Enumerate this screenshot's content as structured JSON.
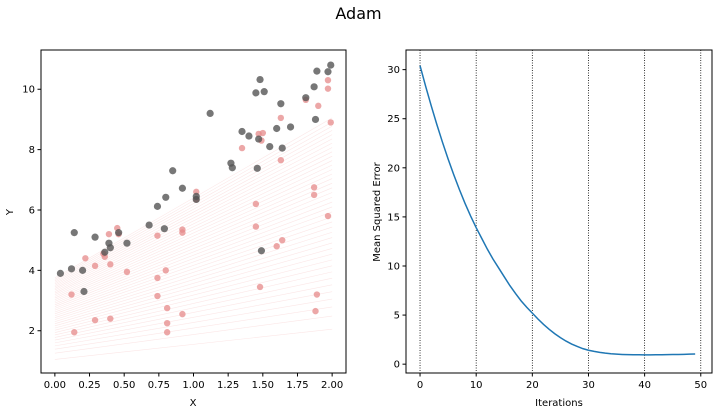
{
  "figure": {
    "title": "Adam"
  },
  "chart_data": [
    {
      "type": "scatter",
      "title": "",
      "xlabel": "X",
      "ylabel": "Y",
      "xlim": [
        -0.1,
        2.1
      ],
      "ylim": [
        0.6,
        11.3
      ],
      "xticks": [
        "0.00",
        "0.25",
        "0.50",
        "0.75",
        "1.00",
        "1.25",
        "1.50",
        "1.75",
        "2.00"
      ],
      "yticks": [
        "2",
        "4",
        "6",
        "8",
        "10"
      ],
      "grid": false,
      "colors": {
        "actual": "#555555",
        "predicted": "#e58a8a",
        "fit_lines": "#f4b6b6"
      },
      "series": [
        {
          "points": [
            [
              0.04,
              3.9
            ],
            [
              0.12,
              4.05
            ],
            [
              0.14,
              5.25
            ],
            [
              0.2,
              4.0
            ],
            [
              0.21,
              3.3
            ],
            [
              0.29,
              5.1
            ],
            [
              0.36,
              4.6
            ],
            [
              0.39,
              4.9
            ],
            [
              0.4,
              4.75
            ],
            [
              0.46,
              5.25
            ],
            [
              0.52,
              4.9
            ],
            [
              0.68,
              5.5
            ],
            [
              0.74,
              6.12
            ],
            [
              0.79,
              5.38
            ],
            [
              0.8,
              6.42
            ],
            [
              0.85,
              7.3
            ],
            [
              0.92,
              6.72
            ],
            [
              1.02,
              6.45
            ],
            [
              1.02,
              6.35
            ],
            [
              1.12,
              9.2
            ],
            [
              1.27,
              7.55
            ],
            [
              1.28,
              7.4
            ],
            [
              1.35,
              8.6
            ],
            [
              1.4,
              8.45
            ],
            [
              1.45,
              9.88
            ],
            [
              1.46,
              7.38
            ],
            [
              1.47,
              8.35
            ],
            [
              1.48,
              10.32
            ],
            [
              1.49,
              4.65
            ],
            [
              1.51,
              9.92
            ],
            [
              1.55,
              8.1
            ],
            [
              1.6,
              8.7
            ],
            [
              1.63,
              9.52
            ],
            [
              1.64,
              8.05
            ],
            [
              1.7,
              8.75
            ],
            [
              1.81,
              9.72
            ],
            [
              1.87,
              10.08
            ],
            [
              1.88,
              9.0
            ],
            [
              1.89,
              10.6
            ],
            [
              1.97,
              10.58
            ],
            [
              1.99,
              10.8
            ]
          ]
        },
        {
          "points": [
            [
              0.12,
              3.2
            ],
            [
              0.14,
              1.95
            ],
            [
              0.22,
              4.4
            ],
            [
              0.29,
              4.15
            ],
            [
              0.29,
              2.35
            ],
            [
              0.35,
              4.55
            ],
            [
              0.36,
              4.45
            ],
            [
              0.39,
              5.2
            ],
            [
              0.4,
              4.2
            ],
            [
              0.4,
              2.4
            ],
            [
              0.45,
              5.4
            ],
            [
              0.46,
              5.2
            ],
            [
              0.52,
              3.95
            ],
            [
              0.74,
              5.15
            ],
            [
              0.74,
              3.75
            ],
            [
              0.74,
              3.15
            ],
            [
              0.8,
              4.0
            ],
            [
              0.81,
              2.75
            ],
            [
              0.81,
              2.25
            ],
            [
              0.81,
              1.95
            ],
            [
              0.92,
              5.35
            ],
            [
              0.92,
              5.25
            ],
            [
              0.92,
              2.55
            ],
            [
              1.02,
              6.6
            ],
            [
              1.02,
              6.35
            ],
            [
              1.35,
              8.05
            ],
            [
              1.45,
              6.2
            ],
            [
              1.45,
              5.45
            ],
            [
              1.47,
              8.52
            ],
            [
              1.48,
              3.45
            ],
            [
              1.49,
              8.3
            ],
            [
              1.5,
              8.55
            ],
            [
              1.6,
              4.8
            ],
            [
              1.63,
              9.05
            ],
            [
              1.63,
              7.65
            ],
            [
              1.64,
              5.0
            ],
            [
              1.81,
              9.65
            ],
            [
              1.87,
              6.75
            ],
            [
              1.87,
              6.5
            ],
            [
              1.88,
              2.65
            ],
            [
              1.89,
              3.2
            ],
            [
              1.9,
              9.45
            ],
            [
              1.97,
              10.3
            ],
            [
              1.97,
              10.02
            ],
            [
              1.97,
              5.8
            ],
            [
              1.99,
              8.9
            ]
          ]
        }
      ]
    },
    {
      "type": "line",
      "title": "",
      "xlabel": "Iterations",
      "ylabel": "Mean Squared Error",
      "xlim": [
        -2.5,
        52
      ],
      "ylim": [
        -0.9,
        32
      ],
      "xticks": [
        "0",
        "10",
        "20",
        "30",
        "40",
        "50"
      ],
      "yticks": [
        "0",
        "5",
        "10",
        "15",
        "20",
        "25",
        "30"
      ],
      "vlines_at": [
        0,
        10,
        20,
        30,
        40,
        50
      ],
      "grid": false,
      "colors": {
        "line": "#1f77b4",
        "vlines": "#000000"
      },
      "x": [
        0,
        1,
        2,
        3,
        4,
        5,
        6,
        7,
        8,
        9,
        10,
        11,
        12,
        13,
        14,
        15,
        16,
        17,
        18,
        19,
        20,
        21,
        22,
        23,
        24,
        25,
        26,
        27,
        28,
        29,
        30,
        31,
        32,
        33,
        34,
        35,
        36,
        37,
        38,
        39,
        40,
        41,
        42,
        43,
        44,
        45,
        46,
        47,
        48,
        49
      ],
      "values": [
        30.4,
        28.3,
        26.3,
        24.4,
        22.6,
        20.9,
        19.3,
        17.8,
        16.4,
        15.1,
        13.9,
        12.8,
        11.7,
        10.7,
        9.8,
        8.9,
        8.0,
        7.2,
        6.45,
        5.8,
        5.2,
        4.6,
        4.05,
        3.55,
        3.1,
        2.7,
        2.35,
        2.05,
        1.8,
        1.58,
        1.42,
        1.3,
        1.2,
        1.12,
        1.06,
        1.02,
        0.99,
        0.97,
        0.96,
        0.96,
        0.95,
        0.95,
        0.96,
        0.96,
        0.97,
        0.98,
        0.99,
        1.0,
        1.02,
        1.04
      ]
    }
  ]
}
